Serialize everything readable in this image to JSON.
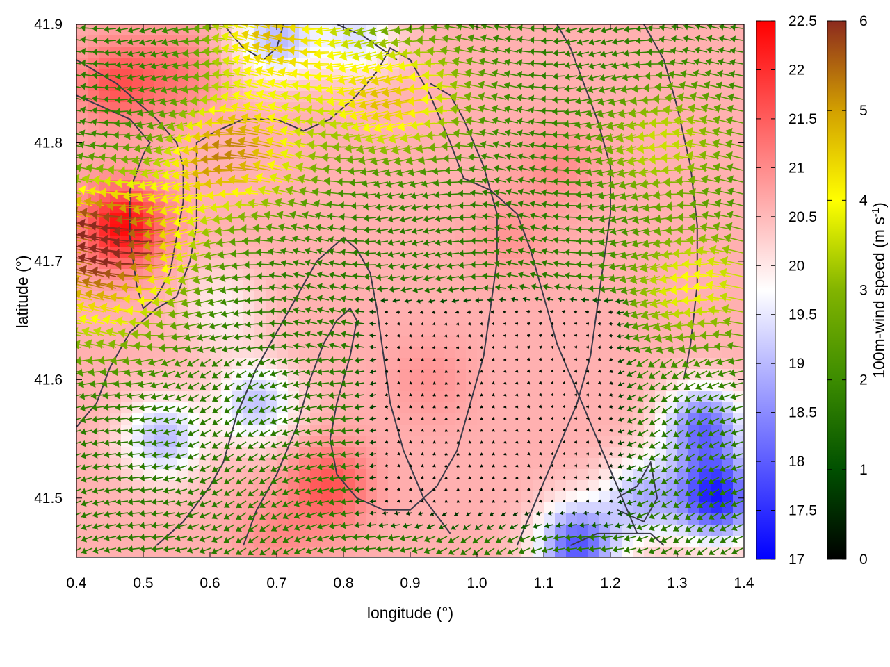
{
  "chart_data": {
    "type": "heatmap",
    "title": "",
    "xlabel": "longitude (°)",
    "ylabel": "latitude (°)",
    "xlim": [
      0.4,
      1.4
    ],
    "ylim": [
      41.45,
      41.9
    ],
    "xticks": [
      0.4,
      0.5,
      0.6,
      0.7,
      0.8,
      0.9,
      1.0,
      1.1,
      1.2,
      1.3,
      1.4
    ],
    "xtick_labels": [
      "0.4",
      "0.5",
      "0.6",
      "0.7",
      "0.8",
      "0.9",
      "1.0",
      "1.1",
      "1.2",
      "1.3",
      "1.4"
    ],
    "yticks": [
      41.5,
      41.6,
      41.7,
      41.8,
      41.9
    ],
    "ytick_labels": [
      "41.5",
      "41.6",
      "41.7",
      "41.8",
      "41.9"
    ],
    "grid": false,
    "background_field": {
      "name": "",
      "range": [
        17,
        22.5
      ],
      "colormap": [
        "#0000ff",
        "#ffffff",
        "#ff0000"
      ],
      "ticks": [
        17,
        17.5,
        18,
        18.5,
        19,
        19.5,
        20,
        20.5,
        21,
        21.5,
        22,
        22.5
      ],
      "tick_labels": [
        "17",
        "17.5",
        "18",
        "18.5",
        "19",
        "19.5",
        "20",
        "20.5",
        "21",
        "21.5",
        "22",
        "22.5"
      ],
      "anomalies": [
        {
          "lon": 0.47,
          "lat": 41.73,
          "value": 22.4
        },
        {
          "lon": 0.46,
          "lat": 41.85,
          "value": 21.6
        },
        {
          "lon": 0.55,
          "lat": 41.86,
          "value": 21.2
        },
        {
          "lon": 0.78,
          "lat": 41.51,
          "value": 21.6
        },
        {
          "lon": 0.7,
          "lat": 41.47,
          "value": 21.0
        },
        {
          "lon": 0.93,
          "lat": 41.6,
          "value": 20.9
        },
        {
          "lon": 1.05,
          "lat": 41.72,
          "value": 20.9
        },
        {
          "lon": 1.12,
          "lat": 41.78,
          "value": 21.0
        },
        {
          "lon": 1.32,
          "lat": 41.7,
          "value": 20.6
        },
        {
          "lon": 1.36,
          "lat": 41.5,
          "value": 17.4
        },
        {
          "lon": 1.34,
          "lat": 41.56,
          "value": 18.2
        },
        {
          "lon": 1.15,
          "lat": 41.46,
          "value": 17.9
        },
        {
          "lon": 1.25,
          "lat": 41.5,
          "value": 19.0
        },
        {
          "lon": 0.53,
          "lat": 41.55,
          "value": 19.0
        },
        {
          "lon": 0.67,
          "lat": 41.58,
          "value": 19.1
        },
        {
          "lon": 0.7,
          "lat": 41.89,
          "value": 19.0
        },
        {
          "lon": 0.82,
          "lat": 41.89,
          "value": 19.4
        },
        {
          "lon": 0.62,
          "lat": 41.66,
          "value": 19.9
        }
      ]
    },
    "wind_field": {
      "name": "100m-wind speed (m s-1)",
      "label_main": "100m-wind speed (m s",
      "label_sup": "-1",
      "label_end": ")",
      "range": [
        0,
        6
      ],
      "colormap": [
        "#000000",
        "#005000",
        "#3c8c00",
        "#82b400",
        "#ffff00",
        "#d2a000",
        "#8c2a1e"
      ],
      "ticks": [
        0,
        1,
        2,
        3,
        4,
        5,
        6
      ],
      "tick_labels": [
        "0",
        "1",
        "2",
        "3",
        "4",
        "5",
        "6"
      ],
      "direction": "mostly westward arrows, strongest in the north-west and along 41.75–41.85°",
      "speed_maxima": [
        {
          "lon": 0.48,
          "lat": 41.72,
          "value": 6.0
        },
        {
          "lon": 0.66,
          "lat": 41.79,
          "value": 5.2
        },
        {
          "lon": 0.9,
          "lat": 41.84,
          "value": 4.6
        },
        {
          "lon": 0.72,
          "lat": 41.89,
          "value": 4.6
        },
        {
          "lon": 1.35,
          "lat": 41.68,
          "value": 4.0
        },
        {
          "lon": 1.3,
          "lat": 41.8,
          "value": 3.6
        },
        {
          "lon": 0.45,
          "lat": 41.66,
          "value": 3.6
        }
      ],
      "calm_region": {
        "lon": [
          0.82,
          1.25
        ],
        "lat": [
          41.47,
          41.68
        ]
      }
    },
    "contours": [
      [
        [
          0.4,
          41.87
        ],
        [
          0.46,
          41.85
        ],
        [
          0.52,
          41.82
        ],
        [
          0.55,
          41.8
        ],
        [
          0.56,
          41.78
        ],
        [
          0.56,
          41.75
        ],
        [
          0.55,
          41.72
        ],
        [
          0.54,
          41.69
        ],
        [
          0.52,
          41.67
        ],
        [
          0.5,
          41.66
        ],
        [
          0.49,
          41.68
        ],
        [
          0.48,
          41.72
        ],
        [
          0.48,
          41.76
        ],
        [
          0.5,
          41.79
        ],
        [
          0.51,
          41.8
        ],
        [
          0.48,
          41.82
        ],
        [
          0.44,
          41.83
        ],
        [
          0.4,
          41.84
        ]
      ],
      [
        [
          0.62,
          41.9
        ],
        [
          0.65,
          41.88
        ],
        [
          0.68,
          41.87
        ],
        [
          0.7,
          41.88
        ],
        [
          0.71,
          41.9
        ]
      ],
      [
        [
          0.79,
          41.9
        ],
        [
          0.83,
          41.89
        ],
        [
          0.88,
          41.87
        ]
      ],
      [
        [
          0.4,
          41.56
        ],
        [
          0.43,
          41.58
        ],
        [
          0.45,
          41.61
        ],
        [
          0.48,
          41.64
        ],
        [
          0.52,
          41.66
        ],
        [
          0.55,
          41.67
        ],
        [
          0.57,
          41.7
        ],
        [
          0.58,
          41.73
        ],
        [
          0.58,
          41.77
        ],
        [
          0.58,
          41.8
        ],
        [
          0.61,
          41.81
        ],
        [
          0.65,
          41.82
        ],
        [
          0.7,
          41.82
        ],
        [
          0.74,
          41.81
        ],
        [
          0.78,
          41.82
        ],
        [
          0.82,
          41.84
        ],
        [
          0.85,
          41.86
        ],
        [
          0.87,
          41.88
        ],
        [
          0.9,
          41.87
        ],
        [
          0.93,
          41.84
        ],
        [
          0.96,
          41.8
        ],
        [
          0.98,
          41.77
        ],
        [
          1.02,
          41.76
        ],
        [
          1.06,
          41.74
        ],
        [
          1.08,
          41.71
        ],
        [
          1.1,
          41.67
        ],
        [
          1.12,
          41.63
        ],
        [
          1.15,
          41.59
        ],
        [
          1.18,
          41.55
        ],
        [
          1.21,
          41.51
        ],
        [
          1.24,
          41.47
        ]
      ],
      [
        [
          0.52,
          41.46
        ],
        [
          0.56,
          41.48
        ],
        [
          0.6,
          41.51
        ],
        [
          0.62,
          41.53
        ],
        [
          0.64,
          41.57
        ],
        [
          0.67,
          41.61
        ],
        [
          0.7,
          41.64
        ],
        [
          0.72,
          41.66
        ],
        [
          0.74,
          41.68
        ],
        [
          0.76,
          41.7
        ],
        [
          0.78,
          41.71
        ],
        [
          0.8,
          41.72
        ],
        [
          0.82,
          41.71
        ],
        [
          0.84,
          41.69
        ],
        [
          0.85,
          41.66
        ],
        [
          0.86,
          41.62
        ],
        [
          0.87,
          41.58
        ],
        [
          0.89,
          41.54
        ],
        [
          0.92,
          41.5
        ],
        [
          0.96,
          41.47
        ]
      ],
      [
        [
          0.65,
          41.46
        ],
        [
          0.67,
          41.49
        ],
        [
          0.7,
          41.52
        ],
        [
          0.73,
          41.56
        ],
        [
          0.75,
          41.6
        ],
        [
          0.77,
          41.63
        ],
        [
          0.79,
          41.65
        ],
        [
          0.81,
          41.66
        ],
        [
          0.82,
          41.65
        ],
        [
          0.81,
          41.62
        ],
        [
          0.79,
          41.58
        ],
        [
          0.78,
          41.55
        ],
        [
          0.79,
          41.52
        ],
        [
          0.82,
          41.5
        ],
        [
          0.86,
          41.49
        ],
        [
          0.9,
          41.49
        ],
        [
          0.94,
          41.51
        ],
        [
          0.97,
          41.54
        ],
        [
          0.99,
          41.58
        ],
        [
          1.01,
          41.62
        ],
        [
          1.02,
          41.66
        ],
        [
          1.03,
          41.7
        ],
        [
          1.03,
          41.74
        ],
        [
          1.01,
          41.78
        ],
        [
          0.98,
          41.82
        ],
        [
          0.96,
          41.84
        ],
        [
          0.93,
          41.85
        ]
      ],
      [
        [
          1.06,
          41.46
        ],
        [
          1.09,
          41.5
        ],
        [
          1.12,
          41.54
        ],
        [
          1.15,
          41.58
        ],
        [
          1.17,
          41.62
        ],
        [
          1.18,
          41.66
        ],
        [
          1.19,
          41.7
        ],
        [
          1.2,
          41.74
        ],
        [
          1.2,
          41.78
        ],
        [
          1.18,
          41.82
        ],
        [
          1.16,
          41.85
        ],
        [
          1.14,
          41.88
        ],
        [
          1.12,
          41.9
        ]
      ],
      [
        [
          1.25,
          41.9
        ],
        [
          1.28,
          41.87
        ],
        [
          1.3,
          41.83
        ],
        [
          1.32,
          41.78
        ],
        [
          1.33,
          41.73
        ],
        [
          1.33,
          41.68
        ],
        [
          1.32,
          41.63
        ],
        [
          1.31,
          41.6
        ]
      ],
      [
        [
          1.21,
          41.5
        ],
        [
          1.24,
          41.51
        ],
        [
          1.26,
          41.53
        ],
        [
          1.27,
          41.5
        ],
        [
          1.25,
          41.48
        ],
        [
          1.21,
          41.49
        ]
      ],
      [
        [
          1.14,
          41.46
        ],
        [
          1.18,
          41.47
        ],
        [
          1.22,
          41.47
        ],
        [
          1.26,
          41.47
        ],
        [
          1.28,
          41.46
        ]
      ]
    ]
  }
}
